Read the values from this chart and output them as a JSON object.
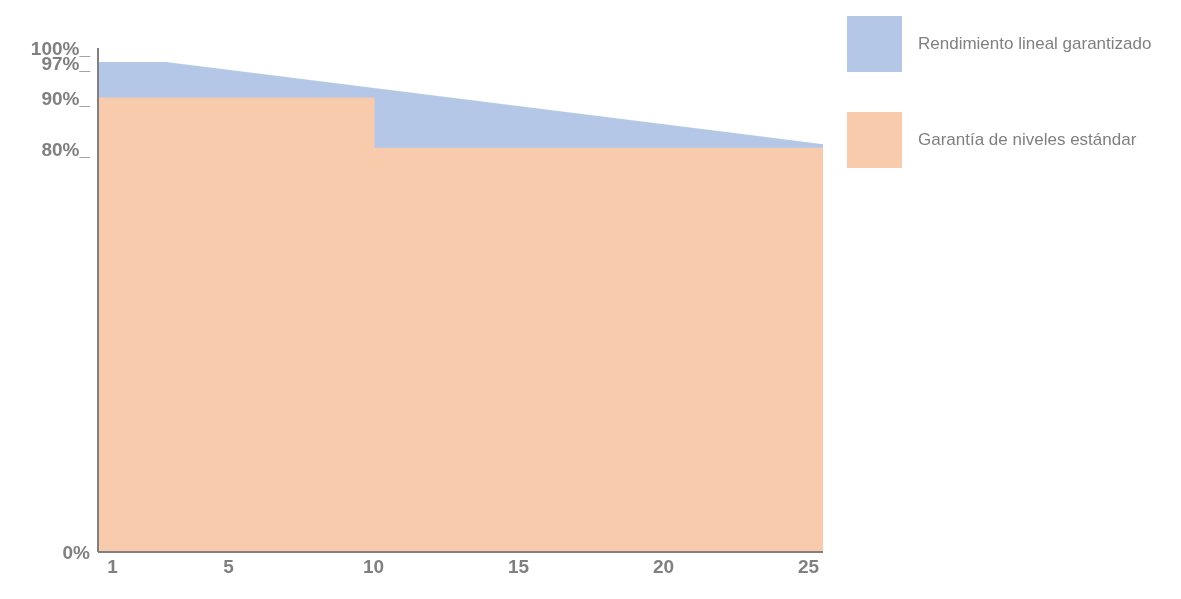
{
  "chart_data": {
    "type": "area",
    "xlim": [
      0.5,
      25.5
    ],
    "xticks": [
      1,
      5,
      10,
      15,
      20,
      25
    ],
    "ylim": [
      0,
      100
    ],
    "yticks": [
      {
        "value": 0,
        "label": "0%"
      },
      {
        "value": 80,
        "label": "80%_"
      },
      {
        "value": 90,
        "label": "90%_"
      },
      {
        "value": 97,
        "label": "97%_"
      },
      {
        "value": 100,
        "label": "100%_"
      }
    ],
    "grid": false,
    "legend": "top right",
    "series": [
      {
        "name": "Rendimiento lineal garantizado",
        "color": "#b4c7e7",
        "x": [
          0.5,
          2.9,
          25.5
        ],
        "values": [
          97,
          97,
          80.7
        ]
      },
      {
        "name": "Garantía de niveles estándar",
        "color": "#f8cbad",
        "type": "step",
        "x": [
          0.5,
          10,
          25.5
        ],
        "values": [
          90,
          80,
          80
        ]
      }
    ]
  }
}
